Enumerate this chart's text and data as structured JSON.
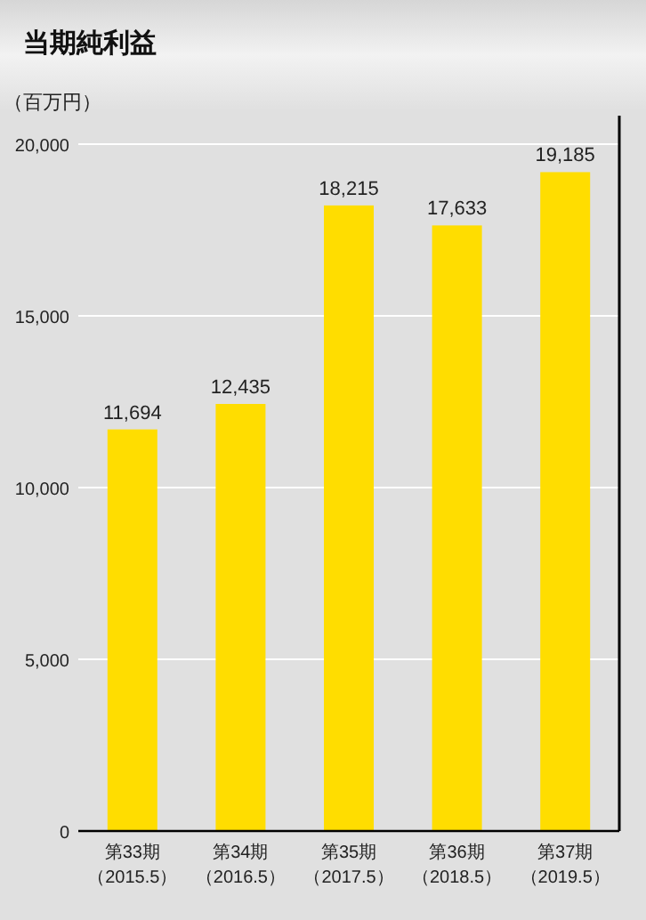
{
  "chart_data": {
    "type": "bar",
    "title": "当期純利益",
    "ylabel": "（百万円）",
    "categories": [
      "第33期（2015.5）",
      "第34期（2016.5）",
      "第35期（2017.5）",
      "第36期（2018.5）",
      "第37期（2019.5）"
    ],
    "values": [
      11694,
      12435,
      18215,
      17633,
      19185
    ],
    "value_labels": [
      "11,694",
      "12,435",
      "18,215",
      "17,633",
      "19,185"
    ],
    "color": "#ffdd00",
    "ylim": [
      0,
      20000
    ],
    "yticks": [
      {
        "value": 0,
        "label": "0"
      },
      {
        "value": 5000,
        "label": "5,000"
      },
      {
        "value": 10000,
        "label": "10,000"
      },
      {
        "value": 15000,
        "label": "15,000"
      },
      {
        "value": 20000,
        "label": "20,000"
      }
    ],
    "grid": "y"
  }
}
